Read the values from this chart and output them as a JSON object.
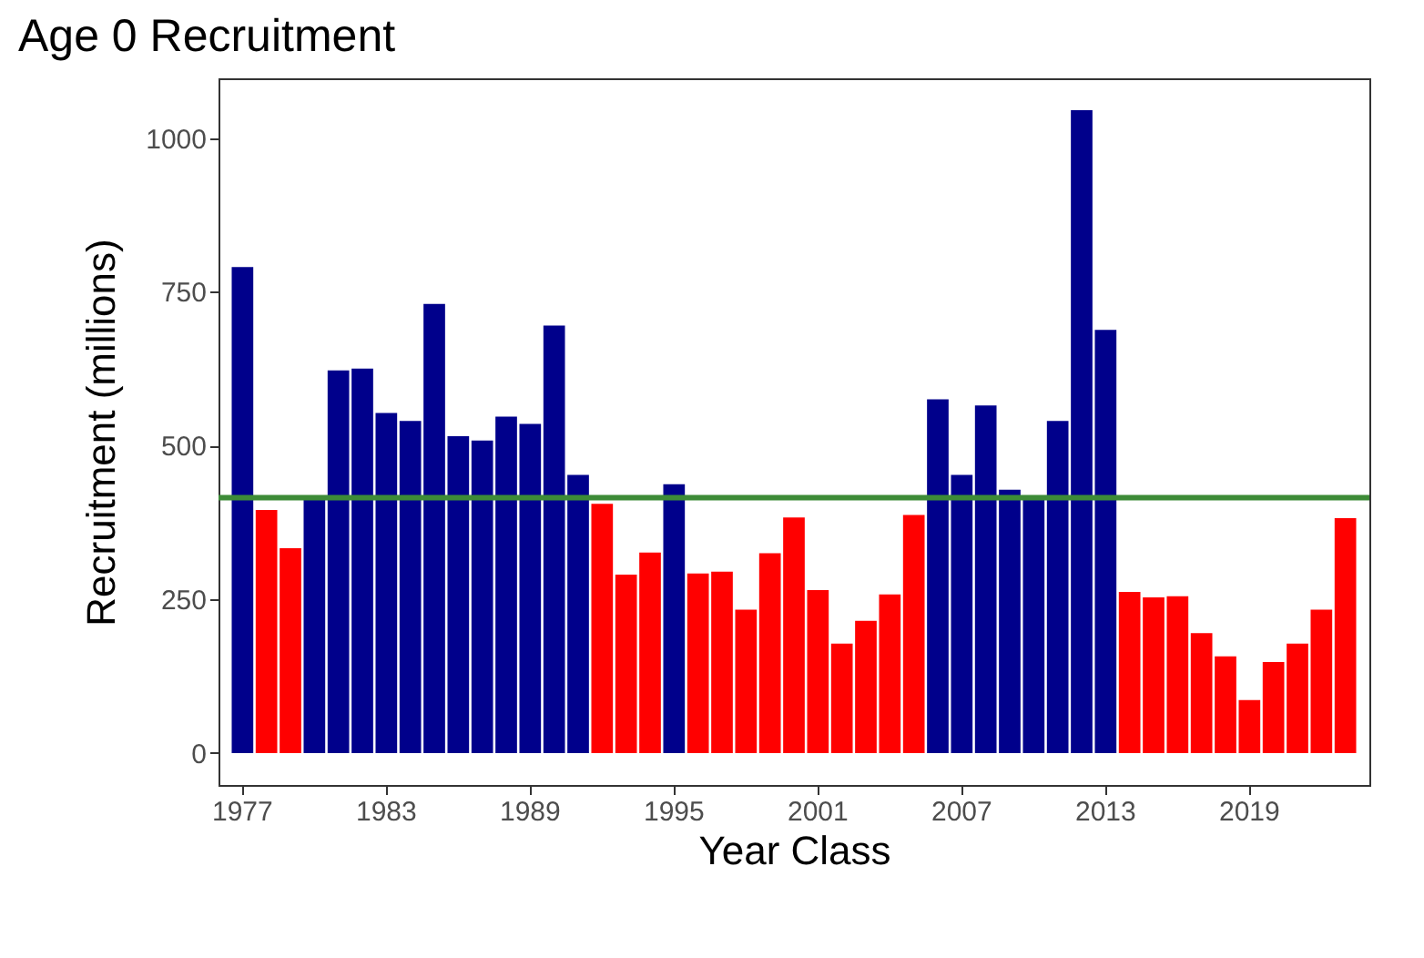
{
  "chart_data": {
    "type": "bar",
    "title": "Age 0 Recruitment",
    "xlabel": "Year Class",
    "ylabel": "Recruitment (millions)",
    "categories": [
      "1977",
      null,
      null,
      null,
      null,
      null,
      "1983",
      null,
      null,
      null,
      null,
      null,
      "1989",
      null,
      null,
      null,
      null,
      null,
      "1995",
      null,
      null,
      null,
      null,
      null,
      "2001",
      null,
      null,
      null,
      null,
      null,
      "2007",
      null,
      null,
      null,
      null,
      null,
      "2013",
      null,
      null,
      null,
      null,
      null,
      "2019",
      null,
      null,
      null,
      null
    ],
    "values": [
      790,
      395,
      333,
      415,
      622,
      625,
      553,
      540,
      730,
      515,
      508,
      547,
      535,
      695,
      452,
      405,
      290,
      326,
      437,
      292,
      295,
      233,
      325,
      383,
      265,
      178,
      215,
      258,
      387,
      575,
      452,
      565,
      428,
      418,
      540,
      1045,
      688,
      262,
      253,
      255,
      195,
      157,
      86,
      148,
      178,
      233,
      382
    ],
    "colors": [
      "#00008b",
      "#ff0000",
      "#ff0000",
      "#00008b",
      "#00008b",
      "#00008b",
      "#00008b",
      "#00008b",
      "#00008b",
      "#00008b",
      "#00008b",
      "#00008b",
      "#00008b",
      "#00008b",
      "#00008b",
      "#ff0000",
      "#ff0000",
      "#ff0000",
      "#00008b",
      "#ff0000",
      "#ff0000",
      "#ff0000",
      "#ff0000",
      "#ff0000",
      "#ff0000",
      "#ff0000",
      "#ff0000",
      "#ff0000",
      "#ff0000",
      "#00008b",
      "#00008b",
      "#00008b",
      "#00008b",
      "#00008b",
      "#00008b",
      "#00008b",
      "#00008b",
      "#ff0000",
      "#ff0000",
      "#ff0000",
      "#ff0000",
      "#ff0000",
      "#ff0000",
      "#ff0000",
      "#ff0000",
      "#ff0000",
      "#ff0000"
    ],
    "ylim": [
      -52,
      1097
    ],
    "yticks": [
      0,
      250,
      500,
      750,
      1000
    ],
    "ref_lines": [
      {
        "axis": "y",
        "value": 415,
        "color": "#3d8b37"
      }
    ]
  }
}
